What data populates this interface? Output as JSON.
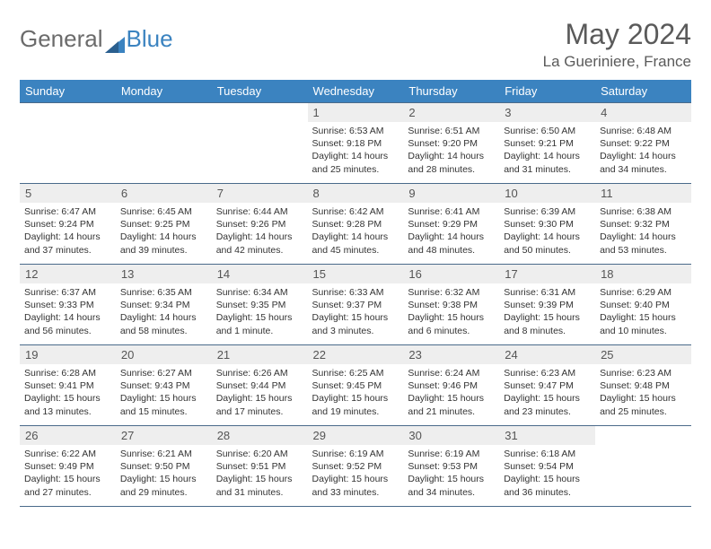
{
  "brand": {
    "part1": "General",
    "part2": "Blue"
  },
  "title": "May 2024",
  "location": "La Gueriniere, France",
  "colors": {
    "header_bg": "#3b83c0",
    "header_text": "#ffffff",
    "daynum_bg": "#eeeeee",
    "border": "#4a6a8a",
    "text": "#333333",
    "title_text": "#5a5a5a"
  },
  "day_headers": [
    "Sunday",
    "Monday",
    "Tuesday",
    "Wednesday",
    "Thursday",
    "Friday",
    "Saturday"
  ],
  "weeks": [
    [
      null,
      null,
      null,
      {
        "n": "1",
        "sr": "6:53 AM",
        "ss": "9:18 PM",
        "dl": "14 hours and 25 minutes."
      },
      {
        "n": "2",
        "sr": "6:51 AM",
        "ss": "9:20 PM",
        "dl": "14 hours and 28 minutes."
      },
      {
        "n": "3",
        "sr": "6:50 AM",
        "ss": "9:21 PM",
        "dl": "14 hours and 31 minutes."
      },
      {
        "n": "4",
        "sr": "6:48 AM",
        "ss": "9:22 PM",
        "dl": "14 hours and 34 minutes."
      }
    ],
    [
      {
        "n": "5",
        "sr": "6:47 AM",
        "ss": "9:24 PM",
        "dl": "14 hours and 37 minutes."
      },
      {
        "n": "6",
        "sr": "6:45 AM",
        "ss": "9:25 PM",
        "dl": "14 hours and 39 minutes."
      },
      {
        "n": "7",
        "sr": "6:44 AM",
        "ss": "9:26 PM",
        "dl": "14 hours and 42 minutes."
      },
      {
        "n": "8",
        "sr": "6:42 AM",
        "ss": "9:28 PM",
        "dl": "14 hours and 45 minutes."
      },
      {
        "n": "9",
        "sr": "6:41 AM",
        "ss": "9:29 PM",
        "dl": "14 hours and 48 minutes."
      },
      {
        "n": "10",
        "sr": "6:39 AM",
        "ss": "9:30 PM",
        "dl": "14 hours and 50 minutes."
      },
      {
        "n": "11",
        "sr": "6:38 AM",
        "ss": "9:32 PM",
        "dl": "14 hours and 53 minutes."
      }
    ],
    [
      {
        "n": "12",
        "sr": "6:37 AM",
        "ss": "9:33 PM",
        "dl": "14 hours and 56 minutes."
      },
      {
        "n": "13",
        "sr": "6:35 AM",
        "ss": "9:34 PM",
        "dl": "14 hours and 58 minutes."
      },
      {
        "n": "14",
        "sr": "6:34 AM",
        "ss": "9:35 PM",
        "dl": "15 hours and 1 minute."
      },
      {
        "n": "15",
        "sr": "6:33 AM",
        "ss": "9:37 PM",
        "dl": "15 hours and 3 minutes."
      },
      {
        "n": "16",
        "sr": "6:32 AM",
        "ss": "9:38 PM",
        "dl": "15 hours and 6 minutes."
      },
      {
        "n": "17",
        "sr": "6:31 AM",
        "ss": "9:39 PM",
        "dl": "15 hours and 8 minutes."
      },
      {
        "n": "18",
        "sr": "6:29 AM",
        "ss": "9:40 PM",
        "dl": "15 hours and 10 minutes."
      }
    ],
    [
      {
        "n": "19",
        "sr": "6:28 AM",
        "ss": "9:41 PM",
        "dl": "15 hours and 13 minutes."
      },
      {
        "n": "20",
        "sr": "6:27 AM",
        "ss": "9:43 PM",
        "dl": "15 hours and 15 minutes."
      },
      {
        "n": "21",
        "sr": "6:26 AM",
        "ss": "9:44 PM",
        "dl": "15 hours and 17 minutes."
      },
      {
        "n": "22",
        "sr": "6:25 AM",
        "ss": "9:45 PM",
        "dl": "15 hours and 19 minutes."
      },
      {
        "n": "23",
        "sr": "6:24 AM",
        "ss": "9:46 PM",
        "dl": "15 hours and 21 minutes."
      },
      {
        "n": "24",
        "sr": "6:23 AM",
        "ss": "9:47 PM",
        "dl": "15 hours and 23 minutes."
      },
      {
        "n": "25",
        "sr": "6:23 AM",
        "ss": "9:48 PM",
        "dl": "15 hours and 25 minutes."
      }
    ],
    [
      {
        "n": "26",
        "sr": "6:22 AM",
        "ss": "9:49 PM",
        "dl": "15 hours and 27 minutes."
      },
      {
        "n": "27",
        "sr": "6:21 AM",
        "ss": "9:50 PM",
        "dl": "15 hours and 29 minutes."
      },
      {
        "n": "28",
        "sr": "6:20 AM",
        "ss": "9:51 PM",
        "dl": "15 hours and 31 minutes."
      },
      {
        "n": "29",
        "sr": "6:19 AM",
        "ss": "9:52 PM",
        "dl": "15 hours and 33 minutes."
      },
      {
        "n": "30",
        "sr": "6:19 AM",
        "ss": "9:53 PM",
        "dl": "15 hours and 34 minutes."
      },
      {
        "n": "31",
        "sr": "6:18 AM",
        "ss": "9:54 PM",
        "dl": "15 hours and 36 minutes."
      },
      null
    ]
  ],
  "labels": {
    "sunrise": "Sunrise:",
    "sunset": "Sunset:",
    "daylight": "Daylight:"
  }
}
